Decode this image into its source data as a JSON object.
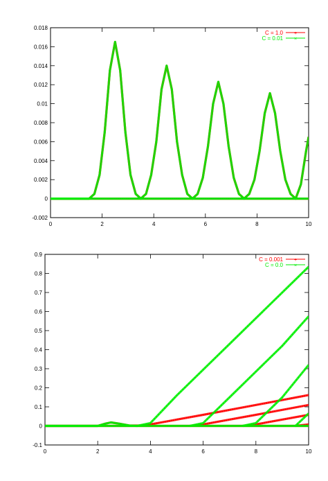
{
  "colors": {
    "red": "#ff0000",
    "green": "#00ee00",
    "axis": "#000000"
  },
  "chart_data": [
    {
      "type": "line",
      "xlim": [
        0,
        10
      ],
      "ylim": [
        -0.002,
        0.018
      ],
      "xticks": [
        0,
        2,
        4,
        6,
        8,
        10
      ],
      "yticks": [
        -0.002,
        0,
        0.002,
        0.004,
        0.006,
        0.008,
        0.01,
        0.012,
        0.014,
        0.016,
        0.018
      ],
      "xtick_labels": [
        "0",
        "2",
        "4",
        "6",
        "8",
        "10"
      ],
      "ytick_labels": [
        "-0.002",
        "0",
        "0.002",
        "0.004",
        "0.006",
        "0.008",
        "0.01",
        "0.012",
        "0.014",
        "0.016",
        "0.018"
      ],
      "grid": false,
      "legend_position": "top-right",
      "marker_style": "points",
      "series": [
        {
          "name": "C = 1.0",
          "color": "#ff0000",
          "segments": [
            [
              [
                0,
                0
              ],
              [
                1.5,
                0
              ],
              [
                1.7,
                0.0005
              ],
              [
                1.9,
                0.0025
              ],
              [
                2.1,
                0.007
              ],
              [
                2.3,
                0.0135
              ],
              [
                2.5,
                0.0165
              ],
              [
                2.7,
                0.0135
              ],
              [
                2.9,
                0.007
              ],
              [
                3.1,
                0.0025
              ],
              [
                3.3,
                0.0005
              ],
              [
                3.5,
                0
              ],
              [
                3.7,
                0.0005
              ],
              [
                3.9,
                0.0025
              ],
              [
                4.1,
                0.006
              ],
              [
                4.3,
                0.0115
              ],
              [
                4.5,
                0.014
              ],
              [
                4.7,
                0.0115
              ],
              [
                4.9,
                0.006
              ],
              [
                5.1,
                0.0025
              ],
              [
                5.3,
                0.0005
              ],
              [
                5.5,
                0
              ],
              [
                5.7,
                0.0005
              ],
              [
                5.9,
                0.0022
              ],
              [
                6.1,
                0.0055
              ],
              [
                6.3,
                0.01
              ],
              [
                6.5,
                0.0123
              ],
              [
                6.7,
                0.01
              ],
              [
                6.9,
                0.0055
              ],
              [
                7.1,
                0.0022
              ],
              [
                7.3,
                0.0005
              ],
              [
                7.5,
                0
              ],
              [
                7.7,
                0.0005
              ],
              [
                7.9,
                0.002
              ],
              [
                8.1,
                0.005
              ],
              [
                8.3,
                0.009
              ],
              [
                8.5,
                0.0111
              ],
              [
                8.7,
                0.009
              ],
              [
                8.9,
                0.005
              ],
              [
                9.1,
                0.002
              ],
              [
                9.3,
                0.0005
              ],
              [
                9.5,
                0
              ],
              [
                9.7,
                0.0015
              ],
              [
                9.9,
                0.005
              ],
              [
                10,
                0.0065
              ]
            ],
            [
              [
                0,
                0
              ],
              [
                10,
                0
              ]
            ]
          ]
        },
        {
          "name": "C = 0.01",
          "color": "#00ee00",
          "segments": [
            [
              [
                0,
                0
              ],
              [
                1.5,
                0
              ],
              [
                1.7,
                0.0005
              ],
              [
                1.9,
                0.0025
              ],
              [
                2.1,
                0.007
              ],
              [
                2.3,
                0.0135
              ],
              [
                2.5,
                0.0165
              ],
              [
                2.7,
                0.0135
              ],
              [
                2.9,
                0.007
              ],
              [
                3.1,
                0.0025
              ],
              [
                3.3,
                0.0005
              ],
              [
                3.5,
                0
              ],
              [
                3.7,
                0.0005
              ],
              [
                3.9,
                0.0025
              ],
              [
                4.1,
                0.006
              ],
              [
                4.3,
                0.0115
              ],
              [
                4.5,
                0.014
              ],
              [
                4.7,
                0.0115
              ],
              [
                4.9,
                0.006
              ],
              [
                5.1,
                0.0025
              ],
              [
                5.3,
                0.0005
              ],
              [
                5.5,
                0
              ],
              [
                5.7,
                0.0005
              ],
              [
                5.9,
                0.0022
              ],
              [
                6.1,
                0.0055
              ],
              [
                6.3,
                0.01
              ],
              [
                6.5,
                0.0123
              ],
              [
                6.7,
                0.01
              ],
              [
                6.9,
                0.0055
              ],
              [
                7.1,
                0.0022
              ],
              [
                7.3,
                0.0005
              ],
              [
                7.5,
                0
              ],
              [
                7.7,
                0.0005
              ],
              [
                7.9,
                0.002
              ],
              [
                8.1,
                0.005
              ],
              [
                8.3,
                0.009
              ],
              [
                8.5,
                0.0111
              ],
              [
                8.7,
                0.009
              ],
              [
                8.9,
                0.005
              ],
              [
                9.1,
                0.002
              ],
              [
                9.3,
                0.0005
              ],
              [
                9.5,
                0
              ],
              [
                9.7,
                0.0015
              ],
              [
                9.9,
                0.005
              ],
              [
                10,
                0.0065
              ]
            ],
            [
              [
                0,
                0
              ],
              [
                10,
                0
              ]
            ]
          ]
        }
      ]
    },
    {
      "type": "line",
      "xlim": [
        0,
        10
      ],
      "ylim": [
        -0.1,
        0.9
      ],
      "xticks": [
        0,
        2,
        4,
        6,
        8,
        10
      ],
      "yticks": [
        -0.1,
        0,
        0.1,
        0.2,
        0.3,
        0.4,
        0.5,
        0.6,
        0.7,
        0.8,
        0.9
      ],
      "xtick_labels": [
        "0",
        "2",
        "4",
        "6",
        "8",
        "10"
      ],
      "ytick_labels": [
        "-0.1",
        "0",
        "0.1",
        "0.2",
        "0.3",
        "0.4",
        "0.5",
        "0.6",
        "0.7",
        "0.8",
        "0.9"
      ],
      "grid": false,
      "legend_position": "top-right",
      "marker_style": "points",
      "series": [
        {
          "name": "C = 0.001",
          "color": "#ff0000",
          "segments": [
            [
              [
                0,
                0
              ],
              [
                2,
                0
              ],
              [
                2.3,
                0.012
              ],
              [
                2.5,
                0.018
              ],
              [
                2.8,
                0.012
              ],
              [
                3.2,
                0.002
              ],
              [
                3.7,
                0.002
              ],
              [
                4,
                0.008
              ],
              [
                6,
                0.058
              ],
              [
                8,
                0.11
              ],
              [
                10,
                0.162
              ]
            ],
            [
              [
                5.5,
                0
              ],
              [
                6,
                0.008
              ],
              [
                8,
                0.058
              ],
              [
                10,
                0.11
              ]
            ],
            [
              [
                7.5,
                0
              ],
              [
                8,
                0.008
              ],
              [
                10,
                0.058
              ]
            ],
            [
              [
                9.5,
                0
              ],
              [
                10,
                0.008
              ]
            ],
            [
              [
                0,
                0
              ],
              [
                10,
                0
              ]
            ]
          ]
        },
        {
          "name": "C = 0.0",
          "color": "#00ee00",
          "segments": [
            [
              [
                0,
                0
              ],
              [
                2,
                0
              ],
              [
                2.3,
                0.012
              ],
              [
                2.5,
                0.018
              ],
              [
                2.8,
                0.012
              ],
              [
                3.2,
                0.002
              ],
              [
                3.5,
                0
              ],
              [
                4,
                0.015
              ],
              [
                5,
                0.16
              ],
              [
                6,
                0.295
              ],
              [
                7,
                0.43
              ],
              [
                8,
                0.565
              ],
              [
                9,
                0.7
              ],
              [
                10,
                0.835
              ]
            ],
            [
              [
                5.5,
                0
              ],
              [
                6,
                0.015
              ],
              [
                7,
                0.15
              ],
              [
                8,
                0.285
              ],
              [
                9,
                0.42
              ],
              [
                10,
                0.575
              ]
            ],
            [
              [
                7.5,
                0
              ],
              [
                8,
                0.015
              ],
              [
                9,
                0.15
              ],
              [
                10,
                0.32
              ]
            ],
            [
              [
                9.5,
                0
              ],
              [
                10,
                0.065
              ]
            ],
            [
              [
                0,
                0
              ],
              [
                10,
                0
              ]
            ]
          ]
        }
      ]
    }
  ]
}
